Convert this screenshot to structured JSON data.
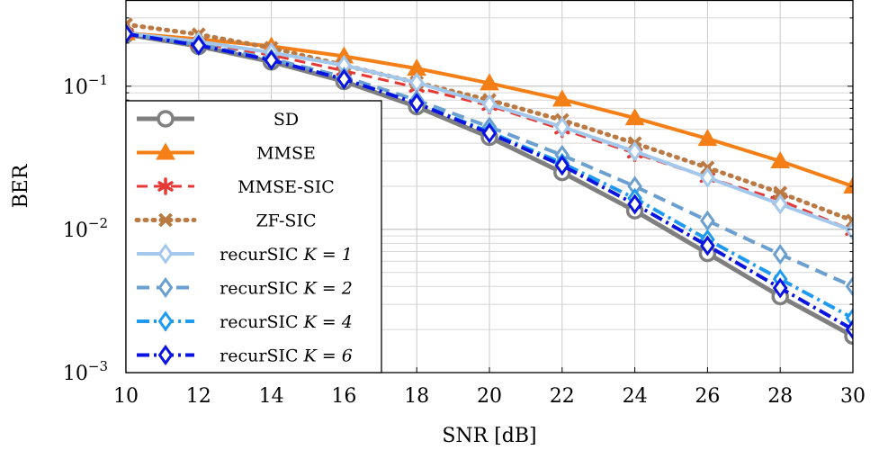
{
  "chart_data": {
    "type": "line",
    "xlabel": "SNR [dB]",
    "ylabel": "BER",
    "xlim": [
      10,
      30
    ],
    "ylim": [
      0.001,
      0.4
    ],
    "yscale": "log",
    "grid": true,
    "legend_position": "bottom-left",
    "x": [
      10,
      12,
      14,
      16,
      18,
      20,
      22,
      24,
      26,
      28,
      30
    ],
    "x_tick_labels": [
      "10",
      "12",
      "14",
      "16",
      "18",
      "20",
      "22",
      "24",
      "26",
      "28",
      "30"
    ],
    "y_tick_labels": [
      {
        "base": "10",
        "exp": "−1",
        "value": 0.1
      },
      {
        "base": "10",
        "exp": "−2",
        "value": 0.01
      },
      {
        "base": "10",
        "exp": "−3",
        "value": 0.001
      }
    ],
    "series": [
      {
        "name": "SD",
        "legend_label": "SD",
        "legend_math": "",
        "color": "#7f7f7f",
        "dash": "",
        "width": 5,
        "marker": "circle",
        "values": [
          0.23,
          0.19,
          0.148,
          0.108,
          0.072,
          0.044,
          0.025,
          0.0135,
          0.0068,
          0.0034,
          0.0018
        ]
      },
      {
        "name": "MMSE",
        "legend_label": "MMSE",
        "legend_math": "",
        "color": "#f57f17",
        "dash": "",
        "width": 4,
        "marker": "triangle",
        "values": [
          0.235,
          0.213,
          0.19,
          0.162,
          0.133,
          0.105,
          0.081,
          0.06,
          0.043,
          0.03,
          0.02
        ]
      },
      {
        "name": "MMSE-SIC",
        "legend_label": "MMSE-SIC",
        "legend_math": "",
        "color": "#e53935",
        "dash": "12,7",
        "width": 3,
        "marker": "asterisk",
        "values": [
          0.235,
          0.2,
          0.165,
          0.128,
          0.098,
          0.073,
          0.05,
          0.034,
          0.023,
          0.016,
          0.0098
        ]
      },
      {
        "name": "ZF-SIC",
        "legend_label": "ZF-SIC",
        "legend_math": "",
        "color": "#bb7a43",
        "dash": "2,7",
        "width": 5,
        "marker": "x",
        "values": [
          0.27,
          0.23,
          0.185,
          0.14,
          0.106,
          0.08,
          0.058,
          0.04,
          0.027,
          0.018,
          0.0115
        ]
      },
      {
        "name": "recurSIC K = 1",
        "legend_label": "recurSIC ",
        "legend_math": "K = 1",
        "color": "#a4c8ec",
        "dash": "",
        "width": 4,
        "marker": "diamond",
        "values": [
          0.235,
          0.205,
          0.172,
          0.14,
          0.106,
          0.075,
          0.052,
          0.035,
          0.023,
          0.015,
          0.0098
        ]
      },
      {
        "name": "recurSIC K = 2",
        "legend_label": "recurSIC ",
        "legend_math": "K = 2",
        "color": "#6a9fd0",
        "dash": "14,8",
        "width": 4,
        "marker": "diamond",
        "values": [
          0.232,
          0.195,
          0.155,
          0.116,
          0.08,
          0.052,
          0.033,
          0.02,
          0.0115,
          0.0067,
          0.004
        ]
      },
      {
        "name": "recurSIC K = 4",
        "legend_label": "recurSIC ",
        "legend_math": "K = 4",
        "color": "#1e9bf0",
        "dash": "14,5,3,5",
        "width": 4,
        "marker": "diamond",
        "values": [
          0.232,
          0.193,
          0.152,
          0.112,
          0.076,
          0.048,
          0.029,
          0.0165,
          0.0085,
          0.0045,
          0.0024
        ]
      },
      {
        "name": "recurSIC K = 6",
        "legend_label": "recurSIC ",
        "legend_math": "K = 6",
        "color": "#0a14e0",
        "dash": "14,5,3,5",
        "width": 4,
        "marker": "diamond",
        "values": [
          0.232,
          0.193,
          0.152,
          0.112,
          0.076,
          0.047,
          0.028,
          0.015,
          0.0077,
          0.0039,
          0.002
        ]
      }
    ]
  }
}
